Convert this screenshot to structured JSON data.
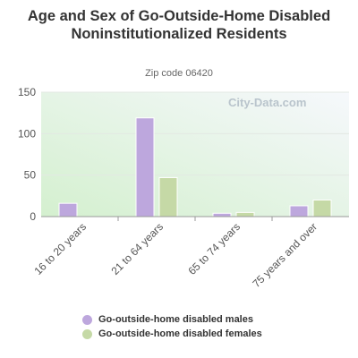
{
  "chart_data": {
    "type": "bar",
    "title": "Age and Sex of Go-Outside-Home Disabled Noninstitutionalized Residents",
    "subtitle": "Zip code 06420",
    "categories": [
      "16 to 20 years",
      "21 to 64 years",
      "65 to 74 years",
      "75 years and over"
    ],
    "series": [
      {
        "name": "Go-outside-home disabled males",
        "values": [
          16,
          119,
          4,
          13
        ],
        "color": "#bda7dd"
      },
      {
        "name": "Go-outside-home disabled females",
        "values": [
          0,
          47,
          5,
          20
        ],
        "color": "#c5d9a6"
      }
    ],
    "ylim": [
      0,
      150
    ],
    "yticks": [
      0,
      50,
      100,
      150
    ],
    "grid": true,
    "legend": "bottom"
  },
  "watermark": "City-Data.com"
}
